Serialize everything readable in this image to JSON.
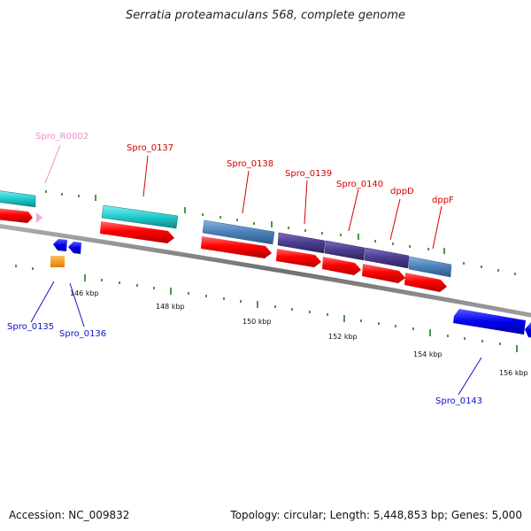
{
  "title": "Serratia proteamaculans 568, complete genome",
  "footer": {
    "accession": "Accession: NC_009832",
    "summary": "Topology: circular; Length: 5,448,853 bp; Genes: 5,000"
  },
  "kbp_labels": [
    "146 kbp",
    "148 kbp",
    "150 kbp",
    "152 kbp",
    "154 kbp",
    "156 kbp"
  ],
  "gene_labels": [
    {
      "text": "Spro_R0002",
      "color": "#f08cc8"
    },
    {
      "text": "Spro_0137",
      "color": "#d40000"
    },
    {
      "text": "Spro_0138",
      "color": "#d40000"
    },
    {
      "text": "Spro_0139",
      "color": "#d40000"
    },
    {
      "text": "Spro_0140",
      "color": "#d40000"
    },
    {
      "text": "dppD",
      "color": "#d40000"
    },
    {
      "text": "dppF",
      "color": "#d40000"
    },
    {
      "text": "Spro_0135",
      "color": "#1010c8"
    },
    {
      "text": "Spro_0136",
      "color": "#1010c8"
    },
    {
      "text": "Spro_0143",
      "color": "#1010c8"
    }
  ],
  "colors": {
    "cds_forward": "#ff0000",
    "rna": "#20cccc",
    "cog_steelblue": "#4a80b8",
    "cog_purple": "#4a3c8c",
    "cds_reverse": "#0000ee",
    "orange_gene": "#f09000",
    "pink_gene": "#f0a8d8",
    "tick_green": "#207a20",
    "backbone": "#808080"
  }
}
